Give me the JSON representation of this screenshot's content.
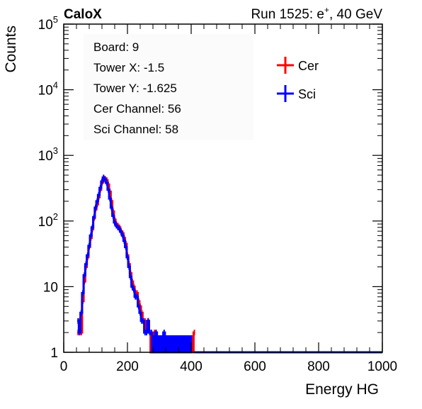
{
  "header": {
    "left_label": "CaloX",
    "run_prefix": "Run 1525: e",
    "run_superscript": "+",
    "run_suffix": ", 40 GeV"
  },
  "info_box": {
    "lines": [
      "Board: 9",
      "Tower X: -1.5",
      "Tower Y: -1.625",
      "Cer Channel: 56",
      "Sci Channel: 58"
    ]
  },
  "colors": {
    "cer": "#ff0000",
    "sci": "#0000ff",
    "axis": "#000000"
  },
  "chart_data": {
    "type": "line",
    "xlabel": "Energy HG",
    "ylabel": "Counts",
    "xlim": [
      0,
      1000
    ],
    "ylim": [
      1,
      100000
    ],
    "y_scale": "log",
    "grid": false,
    "legend_placement": "top-right",
    "x_ticks": [
      0,
      200,
      400,
      600,
      800,
      1000
    ],
    "x_tick_labels": [
      "0",
      "200",
      "400",
      "600",
      "800",
      "1000"
    ],
    "y_ticks": [
      1,
      10,
      100,
      1000,
      10000,
      100000
    ],
    "y_tick_labels": [
      {
        "base": "1",
        "exp": ""
      },
      {
        "base": "10",
        "exp": ""
      },
      {
        "base": "10",
        "exp": "2"
      },
      {
        "base": "10",
        "exp": "3"
      },
      {
        "base": "10",
        "exp": "4"
      },
      {
        "base": "10",
        "exp": "5"
      }
    ],
    "series": [
      {
        "name": "Cer",
        "x": [
          45,
          50,
          55,
          60,
          65,
          70,
          75,
          80,
          85,
          90,
          95,
          100,
          105,
          110,
          115,
          120,
          125,
          130,
          135,
          140,
          145,
          150,
          155,
          160,
          165,
          170,
          175,
          180,
          185,
          190,
          195,
          200,
          205,
          210,
          215,
          220,
          225,
          230,
          235,
          240,
          245,
          250,
          255,
          260,
          265,
          270,
          275,
          280,
          285,
          290,
          295,
          300,
          305,
          310,
          315,
          320,
          325,
          330,
          335,
          340,
          345,
          350,
          355,
          360,
          365,
          370,
          375,
          380,
          385,
          390,
          395,
          400,
          405,
          410
        ],
        "y": [
          2,
          3,
          2,
          6,
          12,
          20,
          28,
          40,
          55,
          75,
          110,
          150,
          180,
          230,
          300,
          380,
          420,
          440,
          420,
          360,
          280,
          200,
          140,
          105,
          90,
          85,
          80,
          70,
          65,
          55,
          45,
          30,
          22,
          16,
          12,
          10,
          8,
          8,
          6,
          5,
          4,
          3,
          3,
          2,
          3,
          2,
          1,
          1,
          2,
          2,
          1,
          1,
          1,
          1,
          1,
          1,
          1,
          1,
          1,
          1,
          1,
          1,
          1,
          1,
          1,
          1,
          1,
          1,
          1,
          1,
          1,
          1,
          1,
          2
        ]
      },
      {
        "name": "Sci",
        "x": [
          45,
          50,
          55,
          60,
          65,
          70,
          75,
          80,
          85,
          90,
          95,
          100,
          105,
          110,
          115,
          120,
          125,
          130,
          135,
          140,
          145,
          150,
          155,
          160,
          165,
          170,
          175,
          180,
          185,
          190,
          195,
          200,
          205,
          210,
          215,
          220,
          225,
          230,
          235,
          240,
          245,
          250,
          255,
          260,
          265,
          270,
          275,
          280,
          285,
          290,
          295,
          300,
          305,
          310,
          315,
          320,
          325,
          330,
          335,
          340,
          345,
          350,
          355,
          360,
          365,
          370,
          375,
          380,
          385,
          390,
          395,
          400
        ],
        "y": [
          3,
          2,
          4,
          8,
          15,
          22,
          30,
          42,
          60,
          80,
          115,
          160,
          200,
          250,
          320,
          400,
          460,
          430,
          380,
          300,
          220,
          160,
          120,
          95,
          85,
          80,
          75,
          68,
          60,
          50,
          40,
          28,
          20,
          14,
          10,
          9,
          7,
          7,
          5,
          4,
          3,
          3,
          2,
          2,
          3,
          2,
          2,
          1,
          1,
          2,
          1,
          1,
          1,
          1,
          2,
          1,
          1,
          1,
          1,
          1,
          1,
          1,
          1,
          1,
          1,
          1,
          1,
          1,
          1,
          1,
          1,
          1
        ]
      }
    ]
  }
}
